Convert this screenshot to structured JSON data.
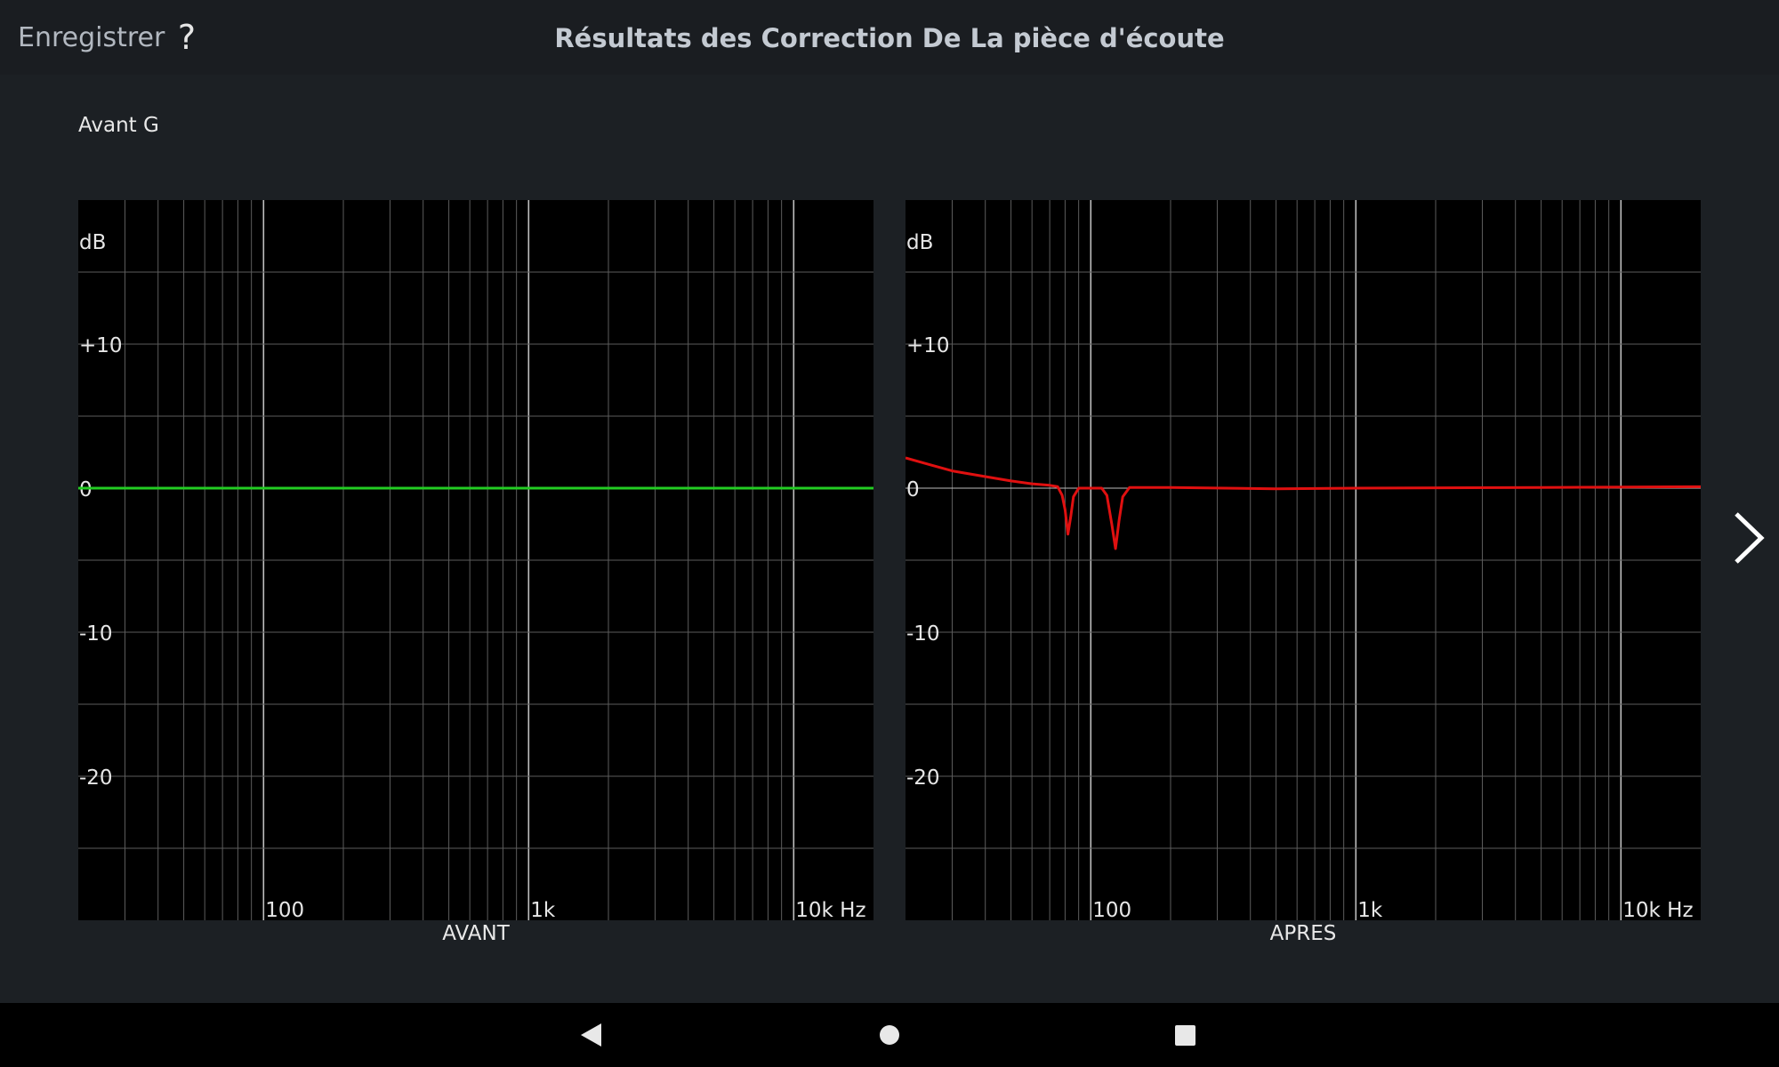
{
  "header": {
    "save_label": "Enregistrer",
    "help_label": "?",
    "title": "Résultats des Correction De La pièce d'écoute"
  },
  "channel": "Avant G",
  "colors": {
    "background": "#1c2024",
    "plot_background": "#000000",
    "grid": "#5c5c5c",
    "before_curve": "#22cc22",
    "after_curve": "#e01010"
  },
  "icons": {
    "next": "chevron-right-icon",
    "back": "back-triangle-icon",
    "home": "home-circle-icon",
    "recents": "recents-square-icon"
  },
  "chart_data": [
    {
      "type": "line",
      "caption": "AVANT",
      "xscale": "log",
      "xlim": [
        20,
        20000
      ],
      "ylim": [
        -30,
        20
      ],
      "y_unit": "dB",
      "x_ticks": [
        {
          "v": 100,
          "label": "100"
        },
        {
          "v": 1000,
          "label": "1k"
        },
        {
          "v": 10000,
          "label": "10k Hz"
        }
      ],
      "y_ticks": [
        {
          "v": 10,
          "label": "+10"
        },
        {
          "v": 0,
          "label": "0"
        },
        {
          "v": -10,
          "label": "-10"
        },
        {
          "v": -20,
          "label": "-20"
        }
      ],
      "grid": true,
      "series": [
        {
          "color": "#22cc22",
          "points": [
            [
              20,
              0
            ],
            [
              20000,
              0
            ]
          ]
        }
      ]
    },
    {
      "type": "line",
      "caption": "APRES",
      "xscale": "log",
      "xlim": [
        20,
        20000
      ],
      "ylim": [
        -30,
        20
      ],
      "y_unit": "dB",
      "x_ticks": [
        {
          "v": 100,
          "label": "100"
        },
        {
          "v": 1000,
          "label": "1k"
        },
        {
          "v": 10000,
          "label": "10k Hz"
        }
      ],
      "y_ticks": [
        {
          "v": 10,
          "label": "+10"
        },
        {
          "v": 0,
          "label": "0"
        },
        {
          "v": -10,
          "label": "-10"
        },
        {
          "v": -20,
          "label": "-20"
        }
      ],
      "grid": true,
      "series": [
        {
          "color": "#e01010",
          "points": [
            [
              20,
              2.1
            ],
            [
              25,
              1.6
            ],
            [
              30,
              1.2
            ],
            [
              40,
              0.8
            ],
            [
              50,
              0.5
            ],
            [
              60,
              0.3
            ],
            [
              70,
              0.2
            ],
            [
              75,
              0.1
            ],
            [
              78,
              -0.5
            ],
            [
              80,
              -1.5
            ],
            [
              82,
              -3.2
            ],
            [
              84,
              -2.0
            ],
            [
              86,
              -0.6
            ],
            [
              90,
              0
            ],
            [
              100,
              0
            ],
            [
              110,
              0
            ],
            [
              115,
              -0.5
            ],
            [
              120,
              -2.5
            ],
            [
              124,
              -4.2
            ],
            [
              128,
              -2.2
            ],
            [
              132,
              -0.6
            ],
            [
              140,
              0.05
            ],
            [
              200,
              0.05
            ],
            [
              500,
              -0.05
            ],
            [
              1000,
              0
            ],
            [
              5000,
              0.05
            ],
            [
              20000,
              0.1
            ]
          ]
        }
      ]
    }
  ]
}
